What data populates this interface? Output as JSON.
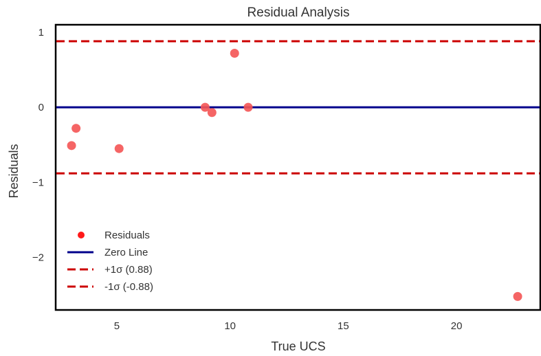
{
  "chart_data": {
    "type": "scatter",
    "title": "Residual Analysis",
    "xlabel": "True UCS",
    "ylabel": "Residuals",
    "xlim": [
      2.3,
      23.7
    ],
    "ylim": [
      -2.7,
      1.1
    ],
    "xticks": [
      5,
      10,
      15,
      20
    ],
    "yticks": [
      1,
      0,
      -1,
      -2
    ],
    "ytick_labels": [
      "1",
      "0",
      "−1",
      "−2"
    ],
    "grid": false,
    "legend_position": "bottom-left",
    "series": [
      {
        "name": "Residuals",
        "kind": "points",
        "color": "#f45454",
        "x": [
          3.0,
          3.2,
          5.1,
          8.9,
          9.2,
          10.2,
          10.8,
          22.7
        ],
        "y": [
          -0.51,
          -0.28,
          -0.55,
          0.0,
          -0.07,
          0.72,
          0.0,
          -2.52
        ]
      },
      {
        "name": "Zero Line",
        "kind": "hline",
        "color": "#00008b",
        "value": 0.0,
        "dashed": false
      },
      {
        "name": "+1σ (0.88)",
        "kind": "hline",
        "color": "#cc0000",
        "value": 0.88,
        "dashed": true
      },
      {
        "name": "-1σ (-0.88)",
        "kind": "hline",
        "color": "#cc0000",
        "value": -0.88,
        "dashed": true
      }
    ]
  }
}
